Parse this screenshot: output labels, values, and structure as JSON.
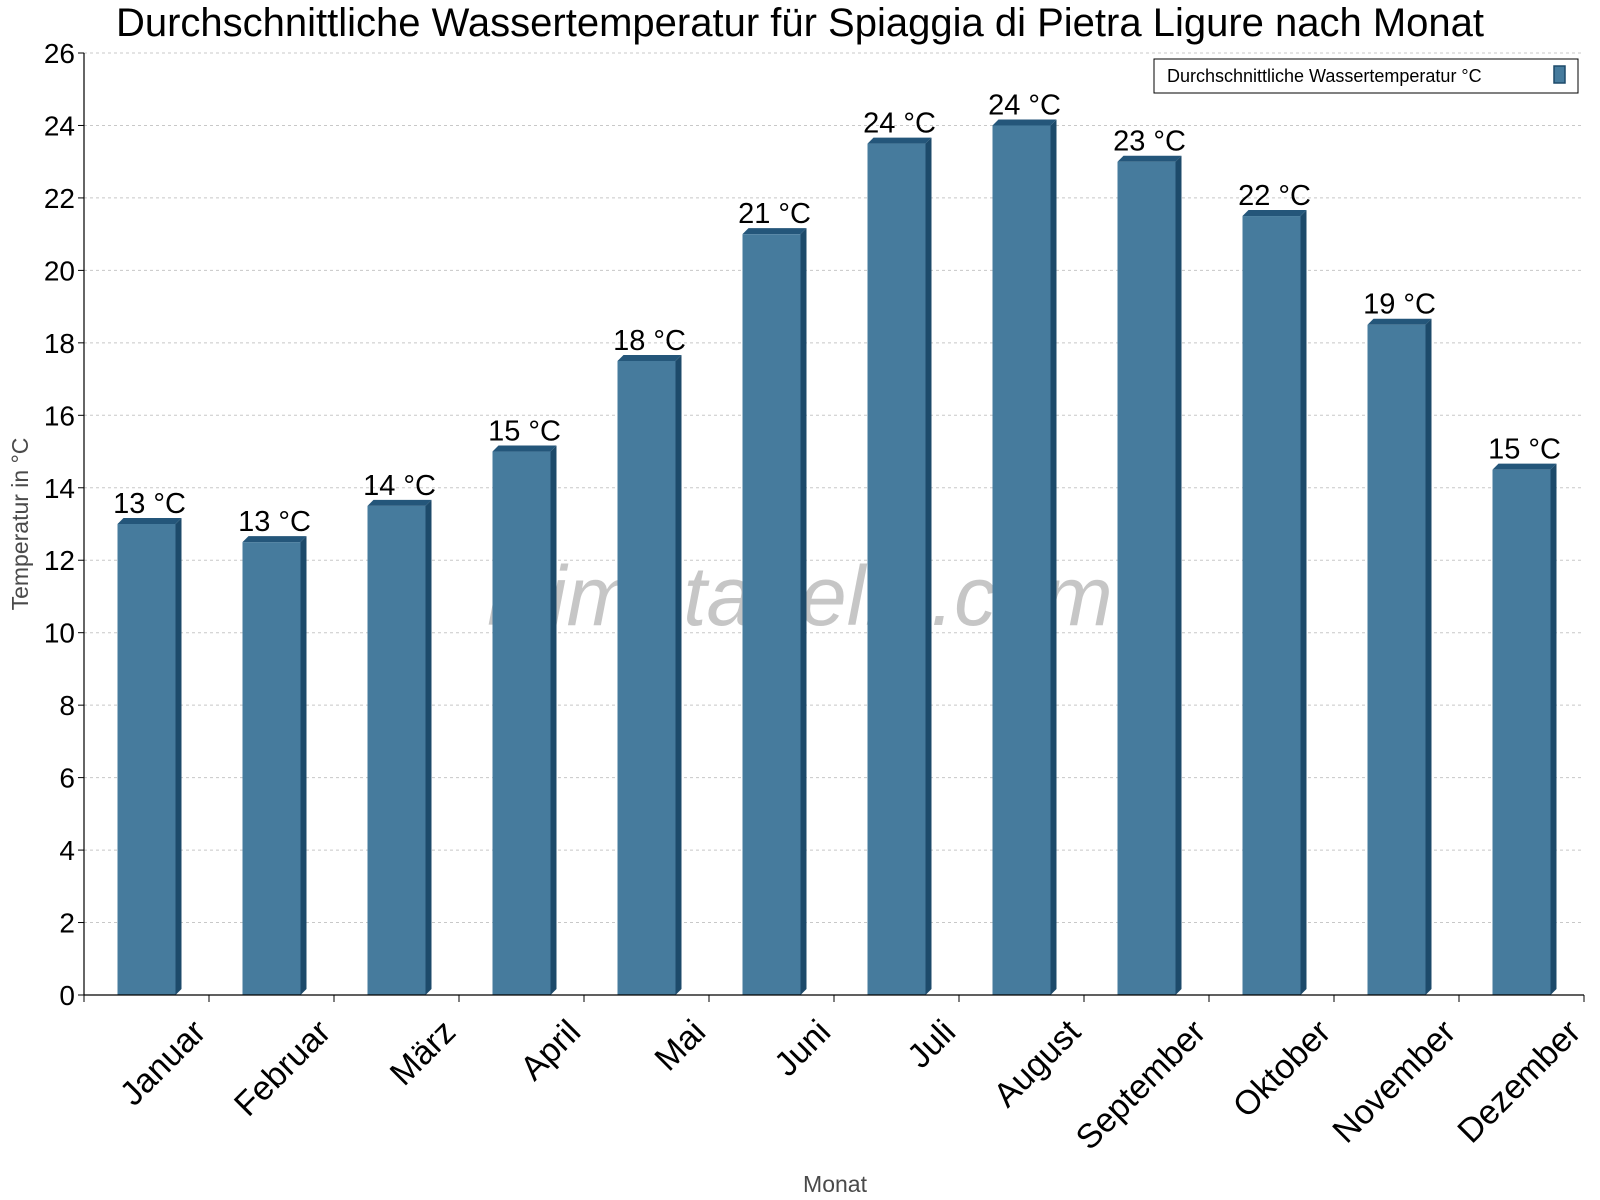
{
  "title": "Durchschnittliche Wassertemperatur für Spiaggia di Pietra Ligure nach Monat",
  "watermark": "klimatabelle.com",
  "colors": {
    "bar_front": "#467b9d",
    "bar_side": "#1d4a6a",
    "bar_top": "#24567a",
    "grid": "#c8c8c8"
  },
  "chart_data": {
    "type": "bar",
    "title": "Durchschnittliche Wassertemperatur für Spiaggia di Pietra Ligure nach Monat",
    "xlabel": "Monat",
    "ylabel": "Temperatur in °C",
    "ylim": [
      0,
      26
    ],
    "yticks": [
      0,
      2,
      4,
      6,
      8,
      10,
      12,
      14,
      16,
      18,
      20,
      22,
      24,
      26
    ],
    "grid": true,
    "legend_position": "top-right",
    "categories": [
      "Januar",
      "Februar",
      "März",
      "April",
      "Mai",
      "Juni",
      "Juli",
      "August",
      "September",
      "Oktober",
      "November",
      "Dezember"
    ],
    "series": [
      {
        "name": "Durchschnittliche Wassertemperatur °C",
        "values": [
          13,
          12.5,
          13.5,
          15,
          17.5,
          21,
          23.5,
          24,
          23,
          21.5,
          18.5,
          14.5
        ],
        "labels": [
          "13 °C",
          "13 °C",
          "14 °C",
          "15 °C",
          "18 °C",
          "21 °C",
          "24 °C",
          "24 °C",
          "23 °C",
          "22 °C",
          "19 °C",
          "15 °C"
        ]
      }
    ]
  }
}
